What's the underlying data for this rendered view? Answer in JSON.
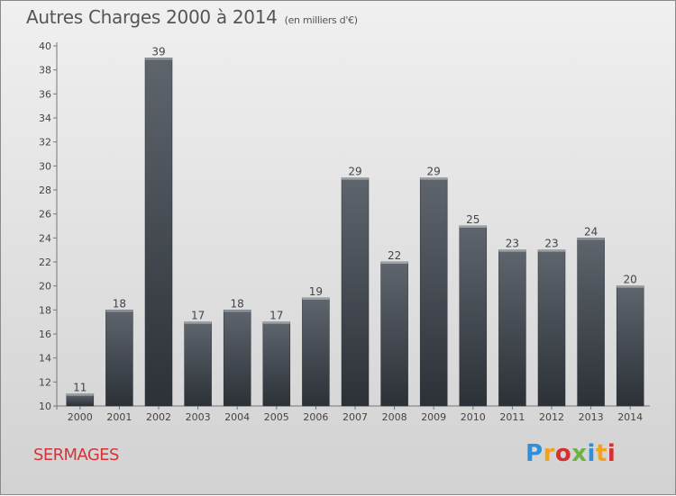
{
  "chart_data": {
    "type": "bar",
    "title": "Autres Charges 2000 à 2014",
    "subtitle": "(en milliers d'€)",
    "categories": [
      "2000",
      "2001",
      "2002",
      "2003",
      "2004",
      "2005",
      "2006",
      "2007",
      "2008",
      "2009",
      "2010",
      "2011",
      "2012",
      "2013",
      "2014"
    ],
    "values": [
      11,
      18,
      39,
      17,
      18,
      17,
      19,
      29,
      22,
      29,
      25,
      23,
      23,
      24,
      20
    ],
    "ylim": [
      10,
      40
    ],
    "yticks": [
      10,
      12,
      14,
      16,
      18,
      20,
      22,
      24,
      26,
      28,
      30,
      32,
      34,
      36,
      38,
      40
    ],
    "grid": false,
    "bar_color": "#3f464e"
  },
  "commune": "SERMAGES",
  "logo": {
    "text": "Proxiti",
    "colors": [
      "#2f8fd8",
      "#f2a21b",
      "#d7312f",
      "#6cb33f"
    ]
  }
}
